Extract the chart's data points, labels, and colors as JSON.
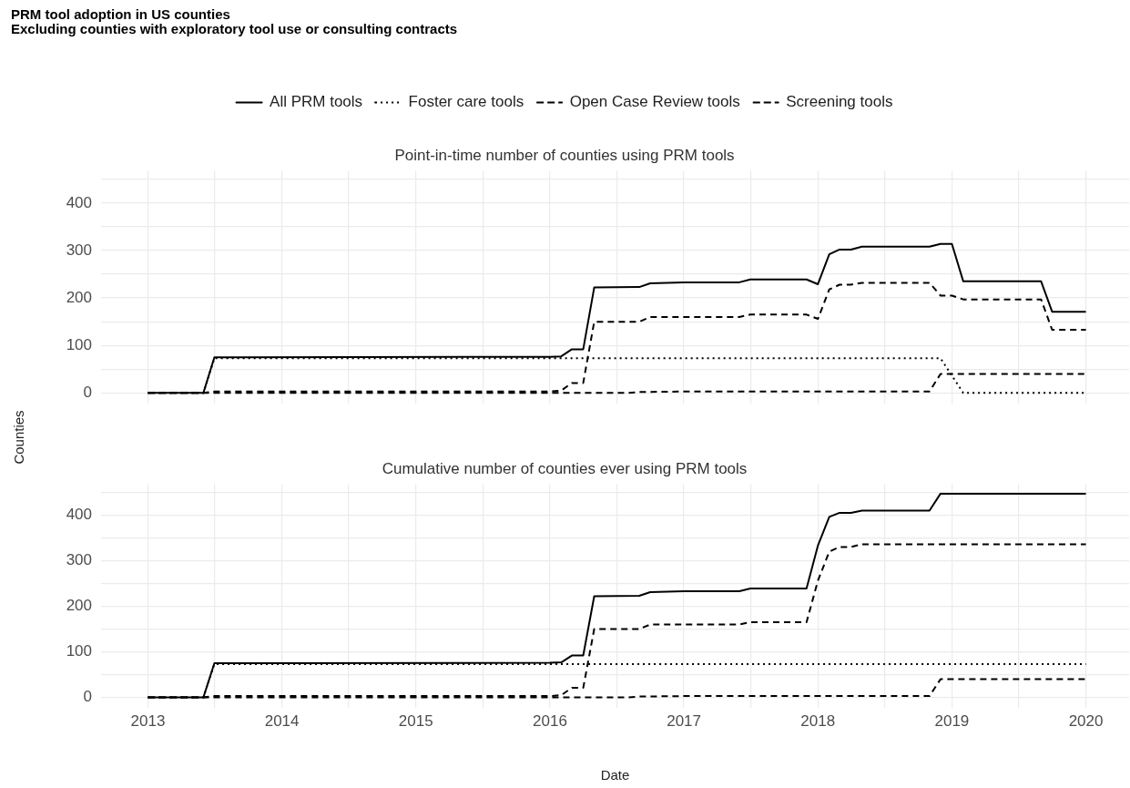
{
  "chart_data": [
    {
      "type": "line",
      "title": "Point-in-time number of counties using PRM tools",
      "ylabel": "Counties",
      "annotations": [
        "PRM tool adoption in US counties",
        "Excluding counties with exploratory tool use or consulting contracts"
      ],
      "legend": "top",
      "grid": true,
      "tick_labels": "y",
      "marker": "none",
      "xlim": [
        "2012-08-26",
        "2020-04-28"
      ],
      "xticks": [
        "2013",
        {
          "value": "2013-07-02",
          "label": null
        },
        "2014",
        {
          "value": "2014-07-02",
          "label": null
        },
        "2015",
        {
          "value": "2015-07-02",
          "label": null
        },
        "2016",
        {
          "value": "2016-07-02",
          "label": null
        },
        "2017",
        {
          "value": "2017-07-02",
          "label": null
        },
        "2018",
        {
          "value": "2018-07-02",
          "label": null
        },
        "2019",
        {
          "value": "2019-07-02",
          "label": null
        },
        "2020"
      ],
      "ylim": [
        -22,
        468
      ],
      "yticks": [
        0,
        {
          "value": 50,
          "label": null
        },
        100,
        {
          "value": 150,
          "label": null
        },
        200,
        {
          "value": 250,
          "label": null
        },
        300,
        {
          "value": 350,
          "label": null
        },
        400,
        {
          "value": 450,
          "label": null
        }
      ],
      "series": [
        {
          "name": "All PRM tools",
          "color": "#000000",
          "line_style": "solid",
          "x": [
            "2013-01",
            "2013-06",
            "2013-07",
            "2016-01",
            "2016-02",
            "2016-03",
            "2016-04",
            "2016-05",
            "2016-09",
            "2016-10",
            "2017-01",
            "2017-06",
            "2017-07",
            "2017-12",
            "2018-01",
            "2018-02",
            "2018-03",
            "2018-04",
            "2018-05",
            "2018-11",
            "2018-12",
            "2019-01",
            "2019-02",
            "2019-09",
            "2019-10",
            "2020-01"
          ],
          "values": [
            0,
            0,
            75,
            76,
            77,
            92,
            92,
            222,
            223,
            231,
            233,
            233,
            239,
            239,
            229,
            292,
            302,
            302,
            308,
            308,
            314,
            314,
            235,
            235,
            171,
            171
          ]
        },
        {
          "name": "Foster care tools",
          "color": "#000000",
          "line_style": "dotted",
          "x": [
            "2013-01",
            "2013-06",
            "2013-07",
            "2018-12",
            "2019-02",
            "2020-01"
          ],
          "values": [
            0,
            0,
            73,
            73,
            0,
            0
          ]
        },
        {
          "name": "Open Case Review tools",
          "color": "#000000",
          "line_style": "dashed",
          "x": [
            "2013-01",
            "2013-06",
            "2013-07",
            "2016-01",
            "2016-02",
            "2016-03",
            "2016-04",
            "2016-05",
            "2016-09",
            "2016-10",
            "2017-06",
            "2017-07",
            "2017-12",
            "2018-01",
            "2018-02",
            "2018-03",
            "2018-04",
            "2018-05",
            "2018-11",
            "2018-12",
            "2019-01",
            "2019-02",
            "2019-09",
            "2019-10",
            "2020-01"
          ],
          "values": [
            0,
            0,
            3,
            3,
            5,
            21,
            21,
            150,
            150,
            160,
            160,
            165,
            165,
            156,
            218,
            228,
            228,
            232,
            232,
            205,
            205,
            197,
            197,
            133,
            133
          ]
        },
        {
          "name": "Screening tools",
          "color": "#000000",
          "line_style": "dashed",
          "x": [
            "2013-01",
            "2016-08",
            "2016-09",
            "2017-01",
            "2018-11",
            "2018-12",
            "2020-01"
          ],
          "values": [
            0,
            0,
            2,
            3,
            3,
            40,
            40
          ]
        }
      ]
    },
    {
      "type": "line",
      "title": "Cumulative number of counties ever using PRM tools",
      "xlabel": "Date",
      "grid": true,
      "marker": "none",
      "xlim": [
        "2012-08-26",
        "2020-04-28"
      ],
      "xticks": [
        "2013",
        {
          "value": "2013-07-02",
          "label": null
        },
        "2014",
        {
          "value": "2014-07-02",
          "label": null
        },
        "2015",
        {
          "value": "2015-07-02",
          "label": null
        },
        "2016",
        {
          "value": "2016-07-02",
          "label": null
        },
        "2017",
        {
          "value": "2017-07-02",
          "label": null
        },
        "2018",
        {
          "value": "2018-07-02",
          "label": null
        },
        "2019",
        {
          "value": "2019-07-02",
          "label": null
        },
        "2020"
      ],
      "ylim": [
        -22,
        468
      ],
      "yticks": [
        0,
        {
          "value": 50,
          "label": null
        },
        100,
        {
          "value": 150,
          "label": null
        },
        200,
        {
          "value": 250,
          "label": null
        },
        300,
        {
          "value": 350,
          "label": null
        },
        400,
        {
          "value": 450,
          "label": null
        }
      ],
      "series": [
        {
          "color": "#000000",
          "line_style": "solid",
          "x": [
            "2013-01",
            "2013-06",
            "2013-07",
            "2016-01",
            "2016-02",
            "2016-03",
            "2016-04",
            "2016-05",
            "2016-09",
            "2016-10",
            "2017-01",
            "2017-06",
            "2017-07",
            "2017-12",
            "2018-01",
            "2018-02",
            "2018-03",
            "2018-04",
            "2018-05",
            "2018-11",
            "2018-12",
            "2020-01"
          ],
          "values": [
            0,
            0,
            75,
            76,
            77,
            92,
            92,
            222,
            223,
            231,
            233,
            233,
            239,
            239,
            333,
            396,
            405,
            405,
            410,
            410,
            447,
            447
          ]
        },
        {
          "color": "#000000",
          "line_style": "dotted",
          "x": [
            "2013-01",
            "2013-06",
            "2013-07",
            "2020-01"
          ],
          "values": [
            0,
            0,
            73,
            73
          ]
        },
        {
          "color": "#000000",
          "line_style": "dashed",
          "x": [
            "2013-01",
            "2013-06",
            "2013-07",
            "2016-01",
            "2016-02",
            "2016-03",
            "2016-04",
            "2016-05",
            "2016-09",
            "2016-10",
            "2017-06",
            "2017-07",
            "2017-12",
            "2018-01",
            "2018-02",
            "2018-03",
            "2018-04",
            "2018-05",
            "2020-01"
          ],
          "values": [
            0,
            0,
            3,
            3,
            5,
            21,
            21,
            150,
            150,
            160,
            160,
            165,
            165,
            256,
            320,
            330,
            330,
            336,
            336
          ]
        },
        {
          "color": "#000000",
          "line_style": "dashed",
          "x": [
            "2013-01",
            "2016-08",
            "2016-09",
            "2017-01",
            "2018-11",
            "2018-12",
            "2020-01"
          ],
          "values": [
            0,
            0,
            2,
            3,
            3,
            40,
            40
          ]
        }
      ]
    }
  ]
}
